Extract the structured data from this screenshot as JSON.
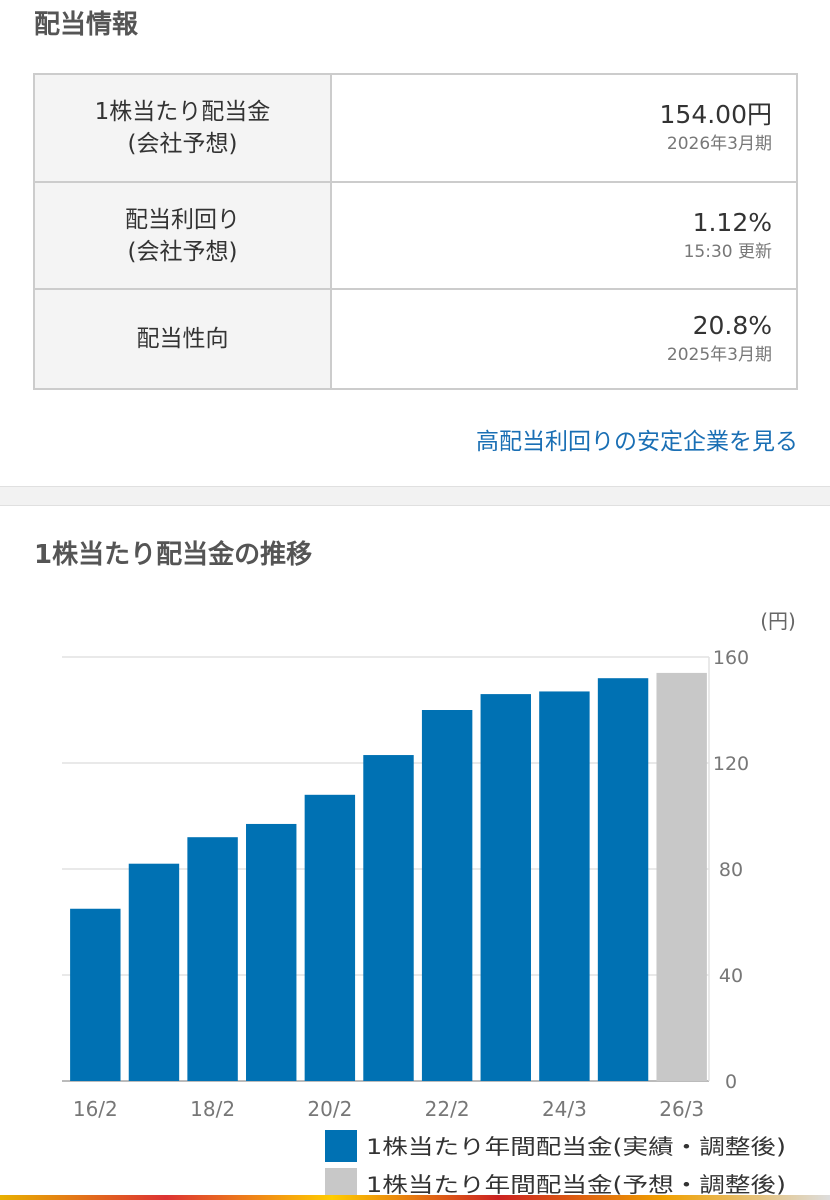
{
  "dividend_info": {
    "title": "配当情報",
    "rows": [
      {
        "label_line1": "1株当たり配当金",
        "label_line2": "(会社予想)",
        "value": "154.00円",
        "sub": "2026年3月期"
      },
      {
        "label_line1": "配当利回り",
        "label_line2": "(会社予想)",
        "value": "1.12%",
        "sub": "15:30 更新"
      },
      {
        "label_line1": "配当性向",
        "label_line2": "",
        "value": "20.8%",
        "sub": "2025年3月期"
      }
    ],
    "link_label": "高配当利回りの安定企業を見る"
  },
  "chart_section": {
    "title": "1株当たり配当金の推移"
  },
  "colors": {
    "actual": "#0071b3",
    "forecast": "#c8c8c8",
    "link": "#1a6fb4"
  },
  "chart_data": {
    "type": "bar",
    "unit_label": "(円)",
    "categories": [
      "16/2",
      "17/2",
      "18/2",
      "19/2",
      "20/2",
      "21/2",
      "22/2",
      "23/2",
      "24/3",
      "25/3",
      "26/3"
    ],
    "x_tick_labels": [
      "16/2",
      "18/2",
      "20/2",
      "22/2",
      "24/3",
      "26/3"
    ],
    "series": [
      {
        "name": "1株当たり年間配当金(実績・調整後)",
        "values": [
          65,
          82,
          92,
          97,
          108,
          123,
          140,
          146,
          147,
          152,
          null
        ]
      },
      {
        "name": "1株当たり年間配当金(予想・調整後)",
        "values": [
          null,
          null,
          null,
          null,
          null,
          null,
          null,
          null,
          null,
          null,
          154
        ]
      }
    ],
    "y_ticks": [
      0,
      40,
      80,
      120,
      160
    ],
    "ylim": [
      0,
      160
    ],
    "grid": true,
    "y_axis_position": "right",
    "legend_position": "bottom"
  }
}
